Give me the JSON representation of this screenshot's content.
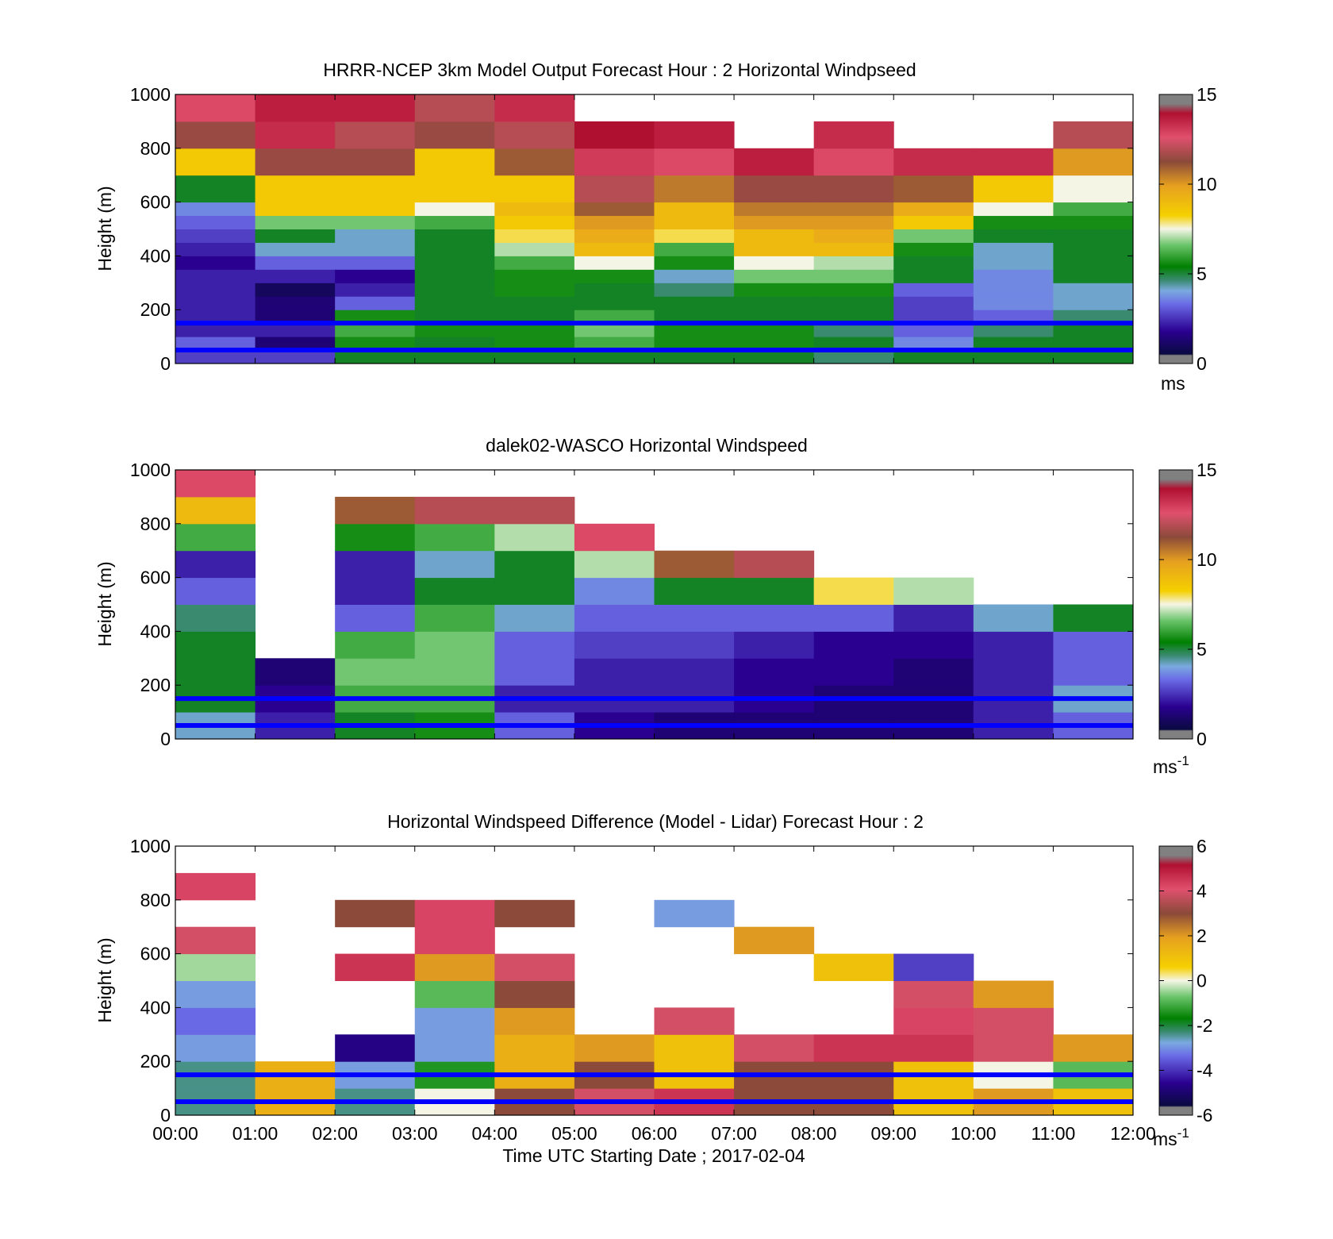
{
  "figure": {
    "xlabel": "Time UTC  Starting Date ; 2017-02-04",
    "x_ticks": [
      "00:00",
      "01:00",
      "02:00",
      "03:00",
      "04:00",
      "05:00",
      "06:00",
      "07:00",
      "08:00",
      "09:00",
      "10:00",
      "11:00",
      "12:00"
    ],
    "reference_line_color": "#0000ff",
    "missing_color": "#808080"
  },
  "chart_data": [
    {
      "type": "heatmap",
      "title": "HRRR-NCEP 3km Model Output   Forecast Hour : 2 Horizontal Windpseed",
      "ylabel": "Height (m)",
      "ylim": [
        0,
        1000
      ],
      "y_ticks": [
        "0",
        "200",
        "400",
        "600",
        "800",
        "1000"
      ],
      "colorbar": {
        "min": 0,
        "max": 15,
        "ticks": [
          "0",
          "5",
          "10",
          "15"
        ],
        "unit": "ms"
      },
      "time_hours": [
        0,
        1,
        2,
        3,
        4,
        5,
        6,
        7,
        8,
        9,
        10,
        11
      ],
      "layer_top_heights_m": [
        50,
        100,
        150,
        200,
        250,
        300,
        350,
        400,
        450,
        500,
        550,
        600,
        700,
        800,
        900,
        1000
      ],
      "windspeed_ms": [
        [
          2.5,
          3,
          2,
          2,
          2,
          2,
          2,
          1.5,
          2,
          2.5,
          3,
          3.5,
          5,
          8.5,
          11.5,
          13
        ],
        [
          2.5,
          1,
          2,
          1,
          1,
          0.5,
          2,
          3,
          4,
          5,
          6.5,
          8.5,
          8.5,
          11.5,
          14,
          14.5
        ],
        [
          5,
          5.5,
          6,
          5.5,
          3,
          2,
          1.5,
          3,
          4,
          4,
          6.5,
          8.5,
          8.5,
          11.5,
          12,
          14.5
        ],
        [
          5,
          5,
          5.5,
          5,
          5,
          5,
          5,
          5,
          5,
          5,
          6,
          7.5,
          8.5,
          8.5,
          11.5,
          12
        ],
        [
          5,
          5.5,
          5.5,
          5,
          5,
          5.5,
          5.5,
          6,
          7,
          8,
          8.5,
          9,
          8.5,
          11,
          12,
          14
        ],
        [
          5,
          6,
          6.5,
          6,
          5,
          5,
          5.5,
          7.5,
          9,
          9.5,
          10,
          11,
          12,
          13.5,
          15,
          null
        ],
        [
          5,
          5.5,
          5.5,
          5,
          5,
          4.5,
          4,
          5.5,
          6,
          8,
          9,
          9,
          10.5,
          13,
          14.5,
          null
        ],
        [
          5,
          5.5,
          5.5,
          5,
          5,
          5.5,
          6.5,
          7.5,
          9,
          9,
          10,
          10.5,
          11.5,
          14.5,
          null,
          null
        ],
        [
          4.5,
          5,
          4.5,
          5,
          5,
          5.5,
          6.5,
          7,
          9,
          9.5,
          10,
          10.5,
          11.5,
          13,
          14,
          null
        ],
        [
          5,
          3.5,
          3,
          2.5,
          2.5,
          3,
          5,
          5,
          5.5,
          6.5,
          8.5,
          9.5,
          11,
          14,
          null,
          null
        ],
        [
          5,
          5,
          4.5,
          3,
          3.5,
          3.5,
          3.5,
          4,
          4,
          5,
          5.5,
          7.5,
          8.5,
          14,
          null,
          null
        ],
        [
          5,
          5,
          5,
          4.5,
          4,
          4,
          5,
          5,
          5,
          5,
          5.5,
          6,
          7.5,
          10,
          12,
          null
        ]
      ],
      "reference_lines_m": [
        50,
        150
      ]
    },
    {
      "type": "heatmap",
      "title": "dalek02-WASCO  Horizontal Windspeed",
      "ylabel": "Height (m)",
      "ylim": [
        0,
        1000
      ],
      "y_ticks": [
        "0",
        "200",
        "400",
        "600",
        "800",
        "1000"
      ],
      "colorbar": {
        "min": 0,
        "max": 15,
        "ticks": [
          "0",
          "5",
          "10",
          "15"
        ],
        "unit": "ms-1"
      },
      "time_hours": [
        0,
        1,
        2,
        3,
        4,
        5,
        6,
        7,
        8,
        9,
        10,
        11
      ],
      "layer_top_heights_m": [
        100,
        200,
        300,
        400,
        500,
        600,
        700,
        800,
        900,
        1000
      ],
      "windspeed_ms": [
        [
          4,
          5,
          5,
          5,
          4.5,
          3,
          2,
          6,
          9,
          13
        ],
        [
          2,
          1.5,
          1,
          null,
          null,
          null,
          null,
          null,
          null,
          null
        ],
        [
          5,
          6,
          6.5,
          6,
          3,
          2,
          2,
          5.5,
          11,
          null
        ],
        [
          5.5,
          6,
          6.5,
          6.5,
          6,
          5,
          4,
          6,
          12,
          null
        ],
        [
          3,
          2,
          3,
          3,
          4,
          5,
          5,
          7,
          12,
          null
        ],
        [
          1.5,
          2,
          2,
          2.5,
          3,
          3.5,
          7,
          13,
          null,
          null
        ],
        [
          1,
          2,
          2,
          2.5,
          3,
          5,
          11,
          null,
          null,
          null
        ],
        [
          1,
          1.5,
          1.5,
          2,
          3,
          5,
          12,
          null,
          null,
          null
        ],
        [
          1,
          1,
          1.5,
          1.5,
          3,
          8,
          null,
          null,
          null,
          null
        ],
        [
          1,
          1,
          1,
          1.5,
          2,
          7,
          null,
          null,
          null,
          null
        ],
        [
          2,
          2,
          2,
          2,
          4,
          null,
          null,
          null,
          null,
          null
        ],
        [
          3,
          4,
          3,
          3,
          5,
          null,
          null,
          null,
          null,
          null
        ]
      ],
      "reference_lines_m": [
        50,
        150
      ]
    },
    {
      "type": "heatmap",
      "title": "Horizontal Windspeed Difference (Model - Lidar) Forecast Hour : 2",
      "ylabel": "Height (m)",
      "ylim": [
        0,
        1000
      ],
      "y_ticks": [
        "0",
        "200",
        "400",
        "600",
        "800",
        "1000"
      ],
      "colorbar": {
        "min": -6,
        "max": 6,
        "ticks": [
          "-6",
          "-4",
          "-2",
          "0",
          "2",
          "4",
          "6"
        ],
        "unit": "ms-1"
      },
      "time_hours": [
        0,
        1,
        2,
        3,
        4,
        5,
        6,
        7,
        8,
        9,
        10,
        11
      ],
      "layer_top_heights_m": [
        100,
        200,
        300,
        400,
        500,
        600,
        700,
        800,
        900
      ],
      "difference_ms": [
        [
          -2.5,
          -2.5,
          -3,
          -3.5,
          -3,
          -0.5,
          4,
          null,
          4.5
        ],
        [
          1.5,
          1.5,
          null,
          null,
          null,
          null,
          null,
          null,
          null
        ],
        [
          -2.5,
          -3,
          -5,
          null,
          null,
          5,
          null,
          3,
          null
        ],
        [
          0,
          -1.5,
          -3,
          -3,
          -1,
          2,
          4.5,
          4.5,
          null
        ],
        [
          3,
          1.5,
          1.5,
          2,
          3,
          4,
          null,
          3,
          null
        ],
        [
          4,
          3,
          2,
          null,
          null,
          null,
          null,
          null,
          null
        ],
        [
          5,
          1,
          1,
          4,
          null,
          null,
          null,
          -3,
          null
        ],
        [
          3,
          3,
          4,
          null,
          null,
          null,
          2,
          null,
          null
        ],
        [
          3,
          3,
          5,
          null,
          null,
          1,
          null,
          null,
          null
        ],
        [
          1,
          1,
          5,
          4.5,
          4,
          -4,
          null,
          null,
          null
        ],
        [
          2,
          0,
          4,
          4,
          2,
          null,
          null,
          null,
          null
        ],
        [
          1,
          -1,
          2,
          null,
          null,
          null,
          null,
          null,
          null
        ]
      ],
      "reference_lines_m": [
        50,
        150
      ]
    }
  ]
}
